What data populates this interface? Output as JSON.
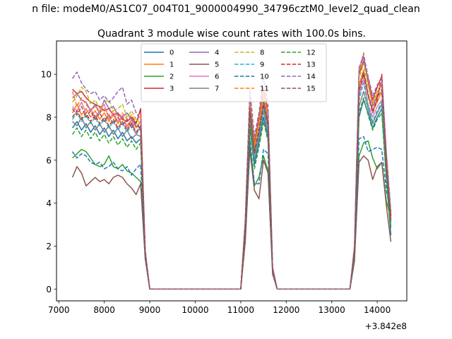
{
  "figure": {
    "suptitle": "n file: modeM0/AS1C07_004T01_9000004990_34796cztM0_level2_quad_clean",
    "title": "Quadrant 3 module wise count rates with 100.0s bins.",
    "offset_text": "+3.842e8"
  },
  "chart_data": {
    "type": "line",
    "title": "Quadrant 3 module wise count rates with 100.0s bins.",
    "xlabel": "",
    "ylabel": "",
    "x_offset": 384200000,
    "xlim": [
      6950,
      14650
    ],
    "ylim": [
      -0.55,
      11.55
    ],
    "xticks": [
      7000,
      8000,
      9000,
      10000,
      11000,
      12000,
      13000,
      14000
    ],
    "yticks": [
      0,
      2,
      4,
      6,
      8,
      10
    ],
    "xtick_labels": [
      "7000",
      "8000",
      "9000",
      "10000",
      "11000",
      "12000",
      "13000",
      "14000"
    ],
    "ytick_labels": [
      "0",
      "2",
      "4",
      "6",
      "8",
      "10"
    ],
    "grid": false,
    "legend": {
      "placement": "upper-center",
      "columns": 4
    },
    "x": [
      7300,
      7400,
      7500,
      7600,
      7700,
      7800,
      7900,
      8000,
      8100,
      8200,
      8300,
      8400,
      8500,
      8600,
      8700,
      8800,
      8900,
      9000,
      9100,
      9200,
      9300,
      9400,
      9500,
      9600,
      9700,
      9800,
      9900,
      10000,
      10100,
      10200,
      10300,
      10400,
      10500,
      10600,
      10700,
      10800,
      10900,
      11000,
      11100,
      11200,
      11300,
      11400,
      11500,
      11600,
      11700,
      11800,
      11900,
      12000,
      12100,
      12200,
      12300,
      12400,
      12500,
      12600,
      12700,
      12800,
      12900,
      13000,
      13100,
      13200,
      13300,
      13400,
      13500,
      13600,
      13700,
      13800,
      13900,
      14000,
      14100,
      14200,
      14300
    ],
    "series": [
      {
        "name": "0",
        "color": "#1f77b4",
        "style": "solid",
        "values": [
          7.5,
          7.8,
          7.4,
          7.7,
          7.3,
          7.6,
          7.2,
          7.5,
          7.1,
          7.4,
          7.0,
          7.3,
          6.9,
          7.1,
          6.8,
          7.0,
          1.6,
          0,
          0,
          0,
          0,
          0,
          0,
          0,
          0,
          0,
          0,
          0,
          0,
          0,
          0,
          0,
          0,
          0,
          0,
          0,
          0,
          0,
          2.8,
          7.5,
          5.8,
          6.8,
          8.0,
          7.0,
          0.9,
          0,
          0,
          0,
          0,
          0,
          0,
          0,
          0,
          0,
          0,
          0,
          0,
          0,
          0,
          0,
          0,
          0,
          1.6,
          8.0,
          8.8,
          8.2,
          7.5,
          8.0,
          8.4,
          5.2,
          2.5
        ]
      },
      {
        "name": "1",
        "color": "#ff7f0e",
        "style": "solid",
        "values": [
          8.2,
          8.6,
          8.1,
          8.4,
          8.0,
          8.3,
          7.9,
          8.2,
          7.8,
          8.1,
          7.7,
          8.0,
          7.6,
          7.9,
          7.5,
          7.8,
          1.7,
          0,
          0,
          0,
          0,
          0,
          0,
          0,
          0,
          0,
          0,
          0,
          0,
          0,
          0,
          0,
          0,
          0,
          0,
          0,
          0,
          0,
          3.0,
          8.5,
          6.5,
          7.5,
          8.8,
          7.8,
          1.0,
          0,
          0,
          0,
          0,
          0,
          0,
          0,
          0,
          0,
          0,
          0,
          0,
          0,
          0,
          0,
          0,
          0,
          1.8,
          9.5,
          10.2,
          9.0,
          8.3,
          8.7,
          9.2,
          5.8,
          3.3
        ]
      },
      {
        "name": "2",
        "color": "#2ca02c",
        "style": "solid",
        "values": [
          6.1,
          6.3,
          6.5,
          6.4,
          6.1,
          5.8,
          5.7,
          5.8,
          6.2,
          5.7,
          5.6,
          5.8,
          5.5,
          5.4,
          5.2,
          5.0,
          1.5,
          0,
          0,
          0,
          0,
          0,
          0,
          0,
          0,
          0,
          0,
          0,
          0,
          0,
          0,
          0,
          0,
          0,
          0,
          0,
          0,
          0,
          2.4,
          6.8,
          4.8,
          5.2,
          6.2,
          5.5,
          0.8,
          0,
          0,
          0,
          0,
          0,
          0,
          0,
          0,
          0,
          0,
          0,
          0,
          0,
          0,
          0,
          0,
          0,
          1.4,
          6.2,
          6.8,
          6.9,
          6.1,
          5.6,
          5.9,
          4.1,
          3.3
        ]
      },
      {
        "name": "3",
        "color": "#d62728",
        "style": "solid",
        "values": [
          9.3,
          9.1,
          9.2,
          8.9,
          8.7,
          8.6,
          8.5,
          8.3,
          8.4,
          8.1,
          8.2,
          7.9,
          7.8,
          8.0,
          7.7,
          8.4,
          1.8,
          0,
          0,
          0,
          0,
          0,
          0,
          0,
          0,
          0,
          0,
          0,
          0,
          0,
          0,
          0,
          0,
          0,
          0,
          0,
          0,
          0,
          3.2,
          8.8,
          6.8,
          8.0,
          9.4,
          8.2,
          1.0,
          0,
          0,
          0,
          0,
          0,
          0,
          0,
          0,
          0,
          0,
          0,
          0,
          0,
          0,
          0,
          0,
          0,
          2.0,
          10.0,
          10.6,
          9.8,
          8.8,
          9.4,
          9.9,
          6.3,
          3.4
        ]
      },
      {
        "name": "4",
        "color": "#9467bd",
        "style": "solid",
        "values": [
          8.9,
          9.1,
          8.8,
          8.7,
          8.3,
          8.6,
          8.2,
          8.8,
          8.4,
          8.5,
          8.1,
          8.0,
          8.2,
          7.9,
          7.6,
          7.5,
          1.7,
          0,
          0,
          0,
          0,
          0,
          0,
          0,
          0,
          0,
          0,
          0,
          0,
          0,
          0,
          0,
          0,
          0,
          0,
          0,
          0,
          0,
          3.0,
          8.7,
          6.4,
          7.6,
          9.0,
          7.8,
          0.9,
          0,
          0,
          0,
          0,
          0,
          0,
          0,
          0,
          0,
          0,
          0,
          0,
          0,
          0,
          0,
          0,
          0,
          1.9,
          10.2,
          10.8,
          9.6,
          8.5,
          9.0,
          9.6,
          6.0,
          3.5
        ]
      },
      {
        "name": "5",
        "color": "#8c564b",
        "style": "solid",
        "values": [
          5.2,
          5.7,
          5.4,
          4.8,
          5.0,
          5.2,
          5.0,
          5.1,
          4.9,
          5.2,
          5.3,
          5.2,
          4.9,
          4.7,
          4.4,
          4.9,
          1.4,
          0,
          0,
          0,
          0,
          0,
          0,
          0,
          0,
          0,
          0,
          0,
          0,
          0,
          0,
          0,
          0,
          0,
          0,
          0,
          0,
          0,
          2.2,
          6.5,
          4.6,
          4.2,
          6.0,
          5.4,
          0.7,
          0,
          0,
          0,
          0,
          0,
          0,
          0,
          0,
          0,
          0,
          0,
          0,
          0,
          0,
          0,
          0,
          0,
          1.3,
          5.9,
          6.2,
          6.0,
          5.1,
          5.7,
          5.9,
          3.9,
          2.2
        ]
      },
      {
        "name": "6",
        "color": "#e377c2",
        "style": "solid",
        "values": [
          8.5,
          8.3,
          8.7,
          8.2,
          8.4,
          8.0,
          8.3,
          8.6,
          7.9,
          8.2,
          7.8,
          8.1,
          7.5,
          7.8,
          7.2,
          7.6,
          1.7,
          0,
          0,
          0,
          0,
          0,
          0,
          0,
          0,
          0,
          0,
          0,
          0,
          0,
          0,
          0,
          0,
          0,
          0,
          0,
          0,
          0,
          3.0,
          8.2,
          6.2,
          7.3,
          8.5,
          7.5,
          0.9,
          0,
          0,
          0,
          0,
          0,
          0,
          0,
          0,
          0,
          0,
          0,
          0,
          0,
          0,
          0,
          0,
          0,
          1.8,
          9.0,
          9.8,
          8.6,
          8.0,
          8.5,
          8.8,
          5.6,
          3.1
        ]
      },
      {
        "name": "7",
        "color": "#7f7f7f",
        "style": "solid",
        "values": [
          7.8,
          7.6,
          8.0,
          7.5,
          7.8,
          7.4,
          7.7,
          7.3,
          7.6,
          7.2,
          7.5,
          7.1,
          7.4,
          7.0,
          7.2,
          7.1,
          1.6,
          0,
          0,
          0,
          0,
          0,
          0,
          0,
          0,
          0,
          0,
          0,
          0,
          0,
          0,
          0,
          0,
          0,
          0,
          0,
          0,
          0,
          2.9,
          8.0,
          6.0,
          7.0,
          8.3,
          7.2,
          0.9,
          0,
          0,
          0,
          0,
          0,
          0,
          0,
          0,
          0,
          0,
          0,
          0,
          0,
          0,
          0,
          0,
          0,
          1.7,
          8.5,
          9.2,
          8.4,
          7.7,
          8.2,
          8.6,
          5.4,
          2.9
        ]
      },
      {
        "name": "8",
        "color": "#bcbd22",
        "style": "dashed",
        "values": [
          8.7,
          9.0,
          9.4,
          9.2,
          8.6,
          8.8,
          8.4,
          8.7,
          8.8,
          8.3,
          8.4,
          8.6,
          8.0,
          8.3,
          7.9,
          7.7,
          1.7,
          0,
          0,
          0,
          0,
          0,
          0,
          0,
          0,
          0,
          0,
          0,
          0,
          0,
          0,
          0,
          0,
          0,
          0,
          0,
          0,
          0,
          3.1,
          8.6,
          6.6,
          7.6,
          9.1,
          8.0,
          0.9,
          0,
          0,
          0,
          0,
          0,
          0,
          0,
          0,
          0,
          0,
          0,
          0,
          0,
          0,
          0,
          0,
          0,
          1.9,
          9.8,
          10.5,
          9.4,
          8.7,
          9.2,
          9.6,
          6.0,
          3.6
        ]
      },
      {
        "name": "9",
        "color": "#17becf",
        "style": "dashed",
        "values": [
          7.9,
          8.2,
          7.8,
          8.1,
          7.7,
          8.0,
          7.6,
          7.9,
          7.5,
          7.8,
          7.4,
          7.7,
          7.3,
          7.6,
          7.2,
          7.5,
          1.6,
          0,
          0,
          0,
          0,
          0,
          0,
          0,
          0,
          0,
          0,
          0,
          0,
          0,
          0,
          0,
          0,
          0,
          0,
          0,
          0,
          0,
          2.9,
          8.1,
          6.1,
          7.1,
          8.4,
          7.4,
          0.9,
          0,
          0,
          0,
          0,
          0,
          0,
          0,
          0,
          0,
          0,
          0,
          0,
          0,
          0,
          0,
          0,
          0,
          1.7,
          8.8,
          9.6,
          8.5,
          7.8,
          8.3,
          8.7,
          5.5,
          3.0
        ]
      },
      {
        "name": "10",
        "color": "#1f77b4",
        "style": "dashed",
        "values": [
          6.4,
          6.1,
          6.3,
          6.2,
          5.9,
          5.8,
          5.9,
          5.6,
          5.7,
          5.9,
          5.6,
          5.5,
          5.7,
          5.3,
          5.6,
          5.8,
          1.5,
          0,
          0,
          0,
          0,
          0,
          0,
          0,
          0,
          0,
          0,
          0,
          0,
          0,
          0,
          0,
          0,
          0,
          0,
          0,
          0,
          0,
          2.6,
          7.0,
          4.9,
          4.9,
          6.5,
          6.3,
          0.8,
          0,
          0,
          0,
          0,
          0,
          0,
          0,
          0,
          0,
          0,
          0,
          0,
          0,
          0,
          0,
          0,
          0,
          1.5,
          7.0,
          7.1,
          6.4,
          6.5,
          6.6,
          6.5,
          4.6,
          3.5
        ]
      },
      {
        "name": "11",
        "color": "#ff7f0e",
        "style": "dashed",
        "values": [
          9.2,
          8.5,
          8.9,
          8.6,
          8.3,
          8.5,
          8.2,
          8.4,
          8.1,
          8.3,
          8.0,
          8.2,
          7.9,
          8.1,
          7.8,
          8.0,
          1.7,
          0,
          0,
          0,
          0,
          0,
          0,
          0,
          0,
          0,
          0,
          0,
          0,
          0,
          0,
          0,
          0,
          0,
          0,
          0,
          0,
          0,
          3.1,
          8.7,
          6.7,
          7.8,
          9.3,
          8.1,
          1.0,
          0,
          0,
          0,
          0,
          0,
          0,
          0,
          0,
          0,
          0,
          0,
          0,
          0,
          0,
          0,
          0,
          0,
          1.9,
          10.1,
          11.0,
          9.7,
          8.6,
          9.1,
          9.5,
          6.1,
          3.5
        ]
      },
      {
        "name": "12",
        "color": "#2ca02c",
        "style": "dashed",
        "values": [
          7.2,
          7.5,
          7.1,
          7.4,
          7.0,
          7.3,
          6.9,
          7.2,
          6.8,
          7.1,
          6.7,
          7.0,
          6.6,
          6.9,
          6.5,
          6.8,
          1.6,
          0,
          0,
          0,
          0,
          0,
          0,
          0,
          0,
          0,
          0,
          0,
          0,
          0,
          0,
          0,
          0,
          0,
          0,
          0,
          0,
          0,
          2.8,
          7.6,
          5.6,
          6.6,
          7.8,
          6.9,
          0.9,
          0,
          0,
          0,
          0,
          0,
          0,
          0,
          0,
          0,
          0,
          0,
          0,
          0,
          0,
          0,
          0,
          0,
          1.6,
          8.2,
          8.9,
          8.1,
          7.4,
          7.9,
          8.2,
          5.1,
          2.8
        ]
      },
      {
        "name": "13",
        "color": "#d62728",
        "style": "dashed",
        "values": [
          8.0,
          8.3,
          7.9,
          8.2,
          7.8,
          8.1,
          7.7,
          8.0,
          7.6,
          7.9,
          7.5,
          7.8,
          7.4,
          7.7,
          7.3,
          7.6,
          1.6,
          0,
          0,
          0,
          0,
          0,
          0,
          0,
          0,
          0,
          0,
          0,
          0,
          0,
          0,
          0,
          0,
          0,
          0,
          0,
          0,
          0,
          2.9,
          8.3,
          6.3,
          7.3,
          8.6,
          7.6,
          0.9,
          0,
          0,
          0,
          0,
          0,
          0,
          0,
          0,
          0,
          0,
          0,
          0,
          0,
          0,
          0,
          0,
          0,
          1.8,
          9.2,
          10.0,
          9.0,
          8.2,
          8.8,
          10.0,
          5.8,
          3.2
        ]
      },
      {
        "name": "14",
        "color": "#9467bd",
        "style": "dashed",
        "values": [
          9.8,
          10.1,
          9.6,
          9.3,
          9.1,
          9.2,
          8.8,
          9.0,
          8.7,
          8.9,
          9.2,
          9.4,
          8.6,
          8.8,
          8.2,
          7.9,
          1.8,
          0,
          0,
          0,
          0,
          0,
          0,
          0,
          0,
          0,
          0,
          0,
          0,
          0,
          0,
          0,
          0,
          0,
          0,
          0,
          0,
          0,
          3.3,
          9.3,
          7.1,
          8.2,
          9.9,
          8.5,
          1.0,
          0,
          0,
          0,
          0,
          0,
          0,
          0,
          0,
          0,
          0,
          0,
          0,
          0,
          0,
          0,
          0,
          0,
          2.0,
          10.3,
          10.9,
          9.9,
          9.0,
          9.5,
          9.8,
          6.4,
          3.6
        ]
      },
      {
        "name": "15",
        "color": "#8c564b",
        "style": "dashed",
        "values": [
          8.4,
          8.1,
          8.5,
          8.0,
          8.3,
          7.9,
          8.2,
          7.8,
          8.1,
          7.7,
          8.0,
          7.6,
          7.9,
          7.5,
          7.8,
          7.4,
          1.6,
          0,
          0,
          0,
          0,
          0,
          0,
          0,
          0,
          0,
          0,
          0,
          0,
          0,
          0,
          0,
          0,
          0,
          0,
          0,
          0,
          0,
          3.0,
          8.4,
          6.4,
          7.4,
          8.7,
          7.7,
          0.9,
          0,
          0,
          0,
          0,
          0,
          0,
          0,
          0,
          0,
          0,
          0,
          0,
          0,
          0,
          0,
          0,
          0,
          1.8,
          9.3,
          10.1,
          9.1,
          8.3,
          8.9,
          9.3,
          5.7,
          3.2
        ]
      }
    ]
  }
}
